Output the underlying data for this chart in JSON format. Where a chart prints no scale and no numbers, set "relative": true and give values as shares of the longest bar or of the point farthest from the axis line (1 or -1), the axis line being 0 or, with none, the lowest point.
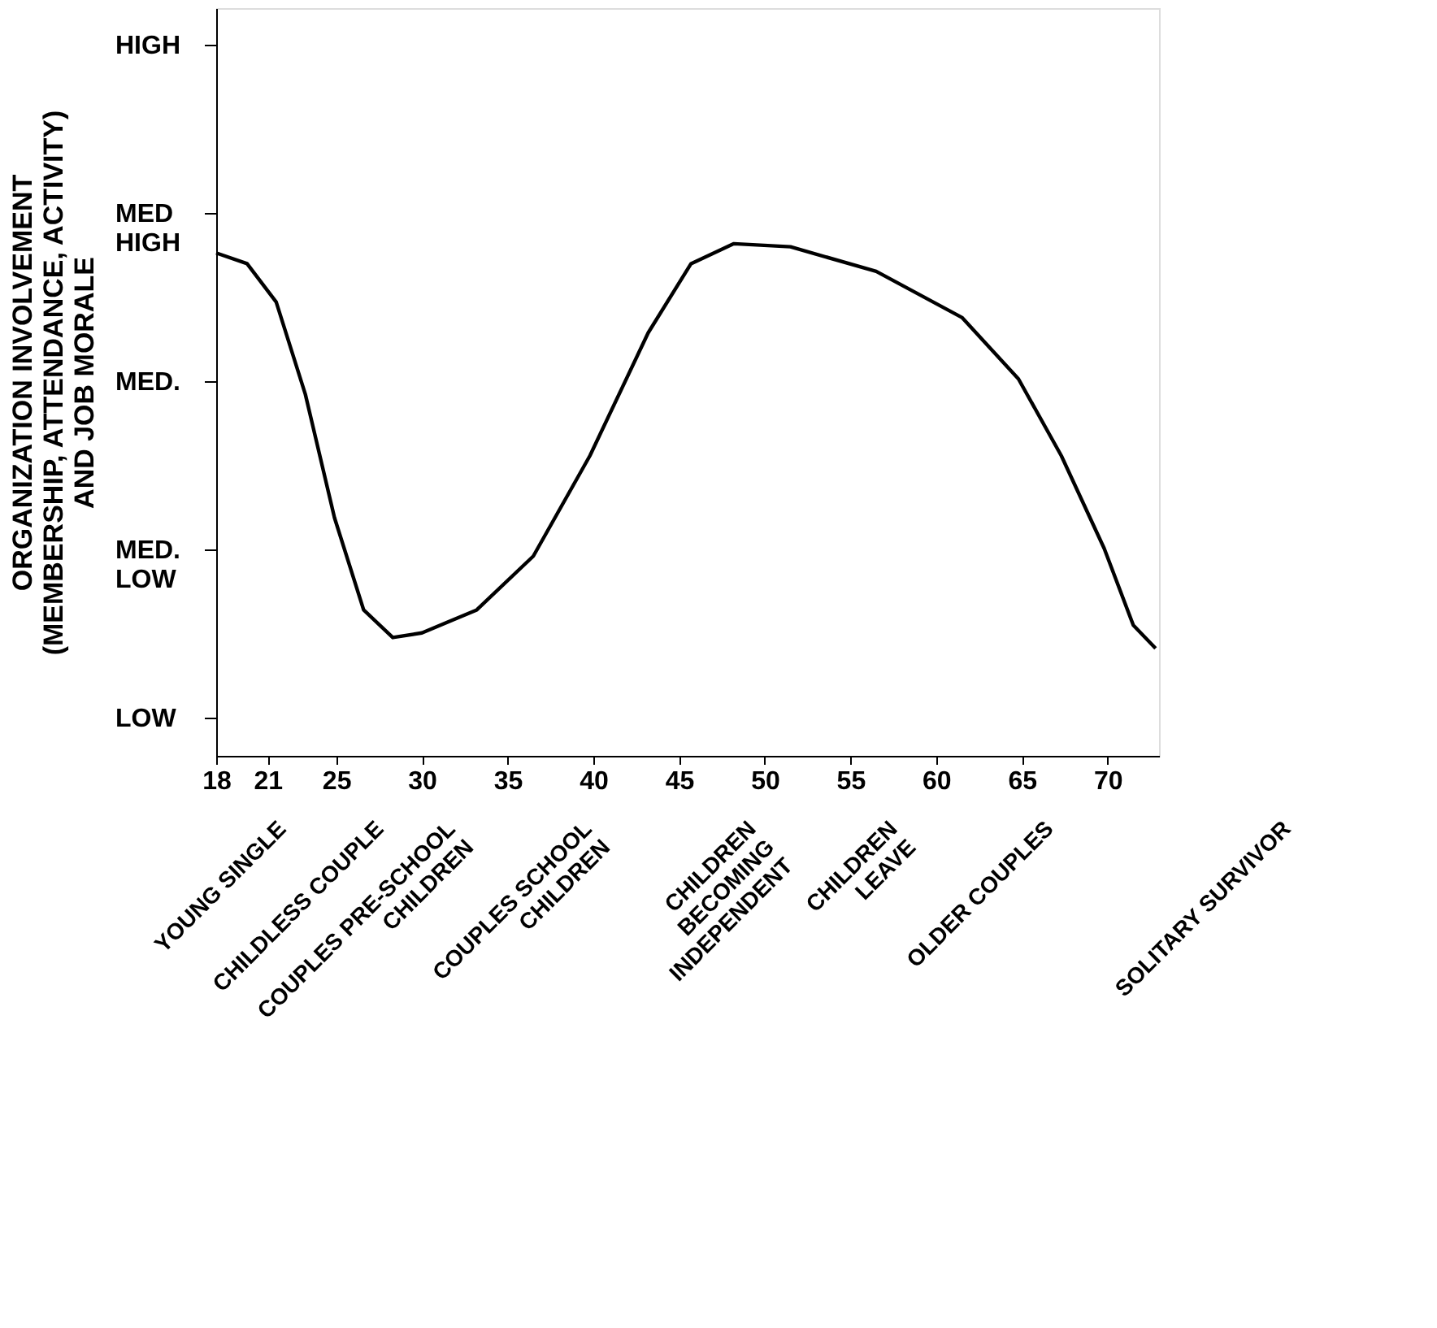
{
  "chart_data": {
    "type": "line",
    "relative": true,
    "ylabel": "ORGANIZATION INVOLVEMENT (MEMBERSHIP, ATTENDANCE, ACTIVITY) AND JOB MORALE",
    "x": [
      18,
      19.8,
      21.5,
      23.2,
      24.9,
      26.6,
      28.3,
      30,
      33.2,
      36.5,
      39.8,
      43.2,
      45.7,
      48.2,
      51.5,
      56.5,
      61.5,
      64.8,
      67.3,
      69.8,
      71.5,
      72.8
    ],
    "series": [
      {
        "color": "#000000",
        "values": [
          0.982,
          0.961,
          0.886,
          0.706,
          0.465,
          0.285,
          0.231,
          0.24,
          0.285,
          0.39,
          0.586,
          0.826,
          0.961,
          1,
          0.994,
          0.946,
          0.856,
          0.736,
          0.586,
          0.405,
          0.255,
          0.21
        ]
      }
    ],
    "xlim": [
      18,
      73
    ],
    "xticks": [
      18,
      21,
      25,
      30,
      35,
      40,
      45,
      50,
      55,
      60,
      65,
      70
    ],
    "grid": false,
    "marker": "none",
    "line_style": "solid",
    "annotations": [
      "LOW",
      "MED. LOW",
      "MED.",
      "MED HIGH",
      "HIGH",
      "YOUNG SINGLE",
      "CHILDLESS COUPLE",
      "COUPLES PRE-SCHOOL\nCHILDREN",
      "COUPLES SCHOOL\nCHILDREN",
      "CHILDREN\nBECOMING\nINDEPENDENT",
      "CHILDREN\nLEAVE",
      "OLDER COUPLES",
      "SOLITARY SURVIVOR"
    ]
  }
}
